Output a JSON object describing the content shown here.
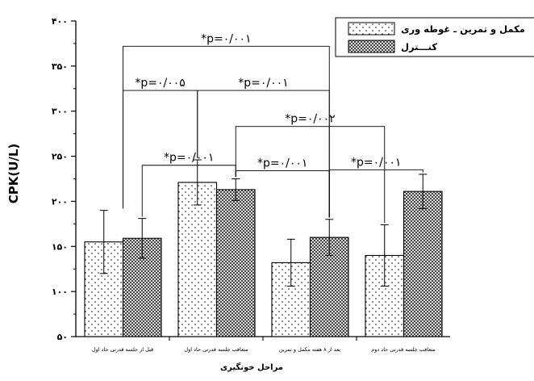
{
  "chart_data": {
    "type": "bar",
    "categories": [
      "قبل از جلسه قدرتی حاد اول",
      "متعاقب جلسه قدرتی حاد اول",
      "بعد از ۸ هفته مکمل و تمرین",
      "متعاقب جلسه قدرتی حاد دوم"
    ],
    "series": [
      {
        "name": "مکمل و تمرین ـ غوطه وری",
        "values": [
          155,
          221,
          132,
          140
        ],
        "errors": [
          35,
          25,
          26,
          34
        ],
        "pattern": "dots"
      },
      {
        "name": "کنـــترل",
        "values": [
          159,
          213,
          160,
          211
        ],
        "errors": [
          22,
          12,
          20,
          19
        ],
        "pattern": "crosshatch"
      }
    ],
    "xlabel": "مراحل خونگیری",
    "ylabel": "CPK(U/L)",
    "ylim": [
      50,
      400
    ],
    "yticks": [
      50,
      100,
      150,
      200,
      250,
      300,
      350,
      400
    ],
    "ytick_labels": [
      "۵۰",
      "۱۰۰",
      "۱۵۰",
      "۲۰۰",
      "۲۵۰",
      "۳۰۰",
      "۳۵۰",
      "۴۰۰"
    ],
    "legend_position": "top-right",
    "grid": false,
    "annotations": [
      {
        "text": "*p=۰/۰۰۱",
        "from": [
          0,
          "center"
        ],
        "to": [
          2,
          "control"
        ],
        "top": 372
      },
      {
        "text": "*p=۰/۰۰۵",
        "from": [
          0,
          "center"
        ],
        "to": [
          1,
          "treatment"
        ],
        "top": 323
      },
      {
        "text": "*p=۰/۰۰۱",
        "from": [
          1,
          "treatment"
        ],
        "to": [
          2,
          "control"
        ],
        "top": 323
      },
      {
        "text": "*p=۰/۰۰۲",
        "from": [
          1,
          "control"
        ],
        "to": [
          3,
          "treatment"
        ],
        "top": 283
      },
      {
        "text": "*p=۰/۰۰۱",
        "from": [
          0,
          "control"
        ],
        "to": [
          1,
          "control"
        ],
        "top": 240
      },
      {
        "text": "*p=۰/۰۰۱",
        "from": [
          1,
          "control"
        ],
        "to": [
          2,
          "control"
        ],
        "top": 234
      },
      {
        "text": "*p=۰/۰۰۱",
        "from": [
          2,
          "control"
        ],
        "to": [
          3,
          "control"
        ],
        "top": 235
      }
    ]
  }
}
